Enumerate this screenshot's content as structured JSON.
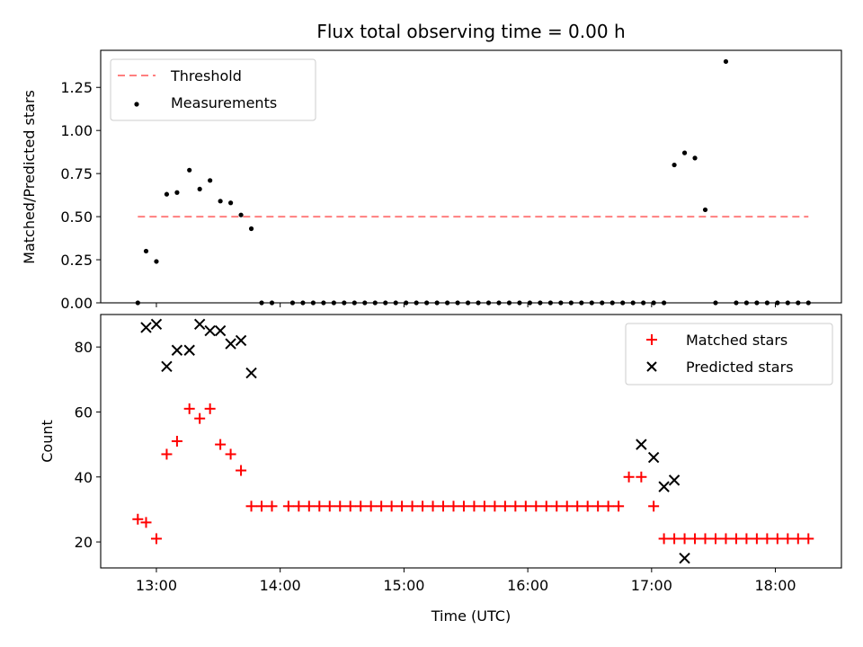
{
  "colors": {
    "threshold": "#ff7f7f",
    "measurement": "#000000",
    "matched": "#ff0000",
    "predicted": "#000000"
  },
  "chart_data": [
    {
      "type": "scatter",
      "title": "Flux total observing time = 0.00 h",
      "xlabel": "",
      "ylabel": "Matched/Predicted stars",
      "xlim": [
        "12:33",
        "18:32"
      ],
      "ylim": [
        0,
        1.465
      ],
      "yticks": [
        0.0,
        0.25,
        0.5,
        0.75,
        1.0,
        1.25
      ],
      "ytick_labels": [
        "0.00",
        "0.25",
        "0.50",
        "0.75",
        "1.00",
        "1.25"
      ],
      "legend": {
        "position": "top-left",
        "entries": [
          "Threshold",
          "Measurements"
        ]
      },
      "threshold": {
        "name": "Threshold",
        "value": 0.5,
        "x_range": [
          "12:51",
          "18:16"
        ]
      },
      "series": [
        {
          "name": "Measurements",
          "marker": "dot",
          "x": [
            "12:51",
            "12:55",
            "13:00",
            "13:05",
            "13:10",
            "13:16",
            "13:21",
            "13:26",
            "13:31",
            "13:36",
            "13:41",
            "13:46",
            "13:51",
            "13:56",
            "14:06",
            "14:11",
            "14:16",
            "14:21",
            "14:26",
            "14:31",
            "14:36",
            "14:41",
            "14:46",
            "14:51",
            "14:56",
            "15:01",
            "15:06",
            "15:11",
            "15:16",
            "15:21",
            "15:26",
            "15:31",
            "15:36",
            "15:41",
            "15:46",
            "15:51",
            "15:56",
            "16:01",
            "16:06",
            "16:11",
            "16:16",
            "16:21",
            "16:26",
            "16:31",
            "16:36",
            "16:41",
            "16:46",
            "16:51",
            "16:56",
            "17:01",
            "17:06",
            "17:11",
            "17:16",
            "17:21",
            "17:26",
            "17:31",
            "17:36",
            "17:41",
            "17:46",
            "17:51",
            "17:56",
            "18:01",
            "18:06",
            "18:11",
            "18:16"
          ],
          "y": [
            0.0,
            0.3,
            0.24,
            0.63,
            0.64,
            0.77,
            0.66,
            0.71,
            0.59,
            0.58,
            0.51,
            0.43,
            0.0,
            0.0,
            0.0,
            0.0,
            0.0,
            0.0,
            0.0,
            0.0,
            0.0,
            0.0,
            0.0,
            0.0,
            0.0,
            0.0,
            0.0,
            0.0,
            0.0,
            0.0,
            0.0,
            0.0,
            0.0,
            0.0,
            0.0,
            0.0,
            0.0,
            0.0,
            0.0,
            0.0,
            0.0,
            0.0,
            0.0,
            0.0,
            0.0,
            0.0,
            0.0,
            0.0,
            0.0,
            0.0,
            0.0,
            0.8,
            0.87,
            0.84,
            0.54,
            0.0,
            1.4,
            0.0,
            0.0,
            0.0,
            0.0,
            0.0,
            0.0,
            0.0,
            0.0
          ]
        }
      ]
    },
    {
      "type": "scatter",
      "title": "",
      "xlabel": "Time (UTC)",
      "ylabel": "Count",
      "xlim": [
        "12:33",
        "18:32"
      ],
      "ylim": [
        12,
        90
      ],
      "yticks": [
        20,
        40,
        60,
        80
      ],
      "ytick_labels": [
        "20",
        "40",
        "60",
        "80"
      ],
      "xticks": [
        "13:00",
        "14:00",
        "15:00",
        "16:00",
        "17:00",
        "18:00"
      ],
      "xtick_labels": [
        "13:00",
        "14:00",
        "15:00",
        "16:00",
        "17:00",
        "18:00"
      ],
      "legend": {
        "position": "top-right",
        "entries": [
          "Matched stars",
          "Predicted stars"
        ]
      },
      "series": [
        {
          "name": "Matched stars",
          "marker": "plus",
          "x": [
            "12:51",
            "12:55",
            "13:00",
            "13:05",
            "13:10",
            "13:16",
            "13:21",
            "13:26",
            "13:31",
            "13:36",
            "13:41",
            "13:46",
            "13:51",
            "13:56",
            "14:04",
            "14:09",
            "14:14",
            "14:19",
            "14:24",
            "14:29",
            "14:34",
            "14:39",
            "14:44",
            "14:49",
            "14:54",
            "14:59",
            "15:04",
            "15:09",
            "15:14",
            "15:19",
            "15:24",
            "15:29",
            "15:34",
            "15:39",
            "15:44",
            "15:49",
            "15:54",
            "15:59",
            "16:04",
            "16:09",
            "16:14",
            "16:19",
            "16:24",
            "16:29",
            "16:34",
            "16:39",
            "16:44",
            "16:49",
            "16:55",
            "17:01",
            "17:06",
            "17:11",
            "17:16",
            "17:21",
            "17:26",
            "17:31",
            "17:36",
            "17:41",
            "17:46",
            "17:51",
            "17:56",
            "18:01",
            "18:06",
            "18:11",
            "18:16"
          ],
          "y": [
            27,
            26,
            21,
            47,
            51,
            61,
            58,
            61,
            50,
            47,
            42,
            31,
            31,
            31,
            31,
            31,
            31,
            31,
            31,
            31,
            31,
            31,
            31,
            31,
            31,
            31,
            31,
            31,
            31,
            31,
            31,
            31,
            31,
            31,
            31,
            31,
            31,
            31,
            31,
            31,
            31,
            31,
            31,
            31,
            31,
            31,
            31,
            40,
            40,
            31,
            21,
            21,
            21,
            21,
            21,
            21,
            21,
            21,
            21,
            21,
            21,
            21,
            21,
            21,
            21
          ]
        },
        {
          "name": "Predicted stars",
          "marker": "x",
          "x": [
            "12:55",
            "13:00",
            "13:05",
            "13:10",
            "13:16",
            "13:21",
            "13:26",
            "13:31",
            "13:36",
            "13:41",
            "13:46",
            "16:55",
            "17:01",
            "17:06",
            "17:11",
            "17:16"
          ],
          "y": [
            86,
            87,
            74,
            79,
            79,
            87,
            85,
            85,
            81,
            82,
            72,
            50,
            46,
            37,
            39,
            15
          ]
        }
      ]
    }
  ]
}
